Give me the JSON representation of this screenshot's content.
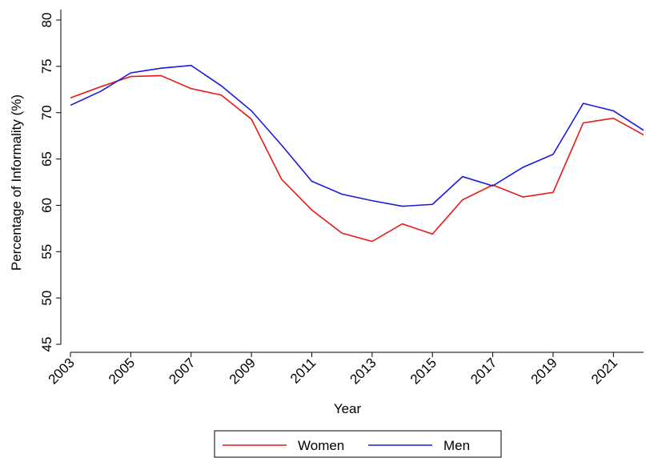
{
  "chart_data": {
    "type": "line",
    "x_label": "Year",
    "y_label": "Percentage of Informality (%)",
    "x": [
      2003,
      2004,
      2005,
      2006,
      2007,
      2008,
      2009,
      2010,
      2011,
      2012,
      2013,
      2014,
      2015,
      2016,
      2017,
      2018,
      2019,
      2020,
      2021,
      2022
    ],
    "series": [
      {
        "name": "Women",
        "color": "#e8191c",
        "values": [
          71.6,
          72.8,
          73.9,
          74.0,
          72.6,
          71.9,
          69.3,
          62.8,
          59.5,
          57.0,
          56.1,
          58.0,
          56.9,
          60.6,
          62.2,
          60.9,
          61.4,
          68.9,
          69.4,
          67.6
        ]
      },
      {
        "name": "Men",
        "color": "#1a1adb",
        "values": [
          70.8,
          72.3,
          74.3,
          74.8,
          75.1,
          72.9,
          70.2,
          66.5,
          62.6,
          61.2,
          60.5,
          59.9,
          60.1,
          63.1,
          62.1,
          64.1,
          65.5,
          71.0,
          70.2,
          68.1
        ]
      }
    ],
    "xlim": [
      2003,
      2022
    ],
    "xticks": [
      2003,
      2005,
      2007,
      2009,
      2011,
      2013,
      2015,
      2017,
      2019,
      2021
    ],
    "ylim": [
      45,
      80
    ],
    "yticks": [
      45,
      50,
      55,
      60,
      65,
      70,
      75,
      80
    ],
    "legend": "bottom"
  }
}
